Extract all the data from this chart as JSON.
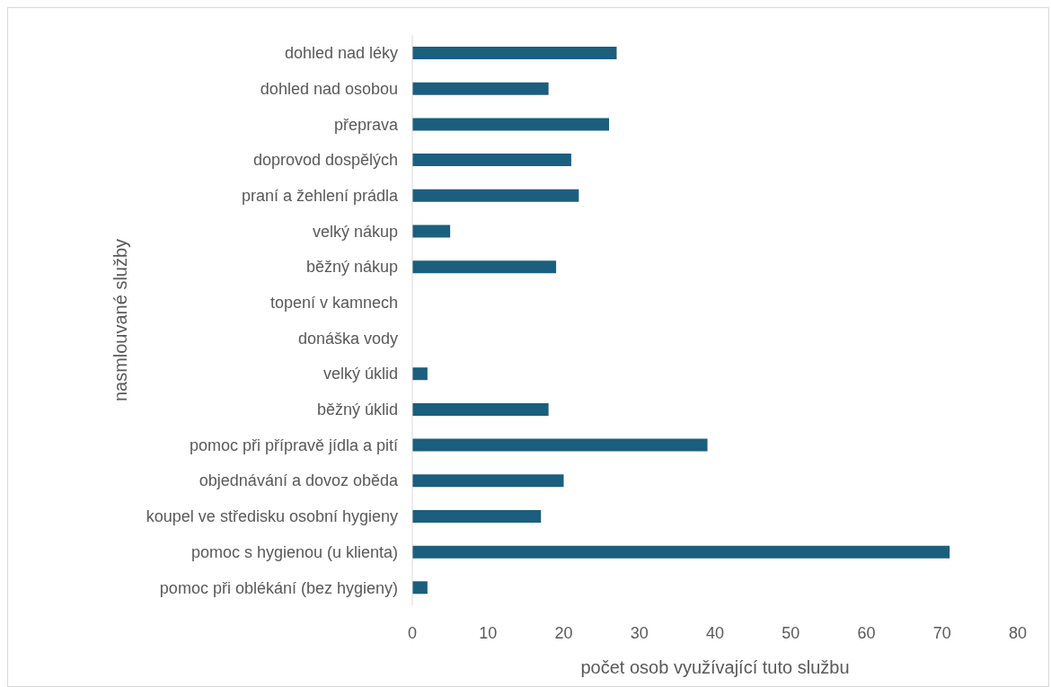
{
  "chart_data": {
    "type": "bar",
    "orientation": "horizontal",
    "xlabel": "počet osob využívající tuto službu",
    "ylabel": "nasmlouvané služby",
    "categories": [
      "dohled nad léky",
      "dohled nad osobou",
      "přeprava",
      "doprovod dospělých",
      "praní a žehlení prádla",
      "velký nákup",
      "běžný nákup",
      "topení v kamnech",
      "donáška vody",
      "velký úklid",
      "běžný úklid",
      "pomoc při přípravě jídla a pití",
      "objednávání a dovoz oběda",
      "koupel ve středisku osobní hygieny",
      "pomoc s hygienou (u klienta)",
      "pomoc při oblékání (bez hygieny)"
    ],
    "values": [
      27,
      18,
      26,
      21,
      22,
      5,
      19,
      0,
      0,
      2,
      18,
      39,
      20,
      17,
      71,
      2
    ],
    "color": "#1b5e7e",
    "xlim": [
      0,
      80
    ],
    "xticks": [
      0,
      10,
      20,
      30,
      40,
      50,
      60,
      70,
      80
    ],
    "grid": false,
    "legend": false
  }
}
